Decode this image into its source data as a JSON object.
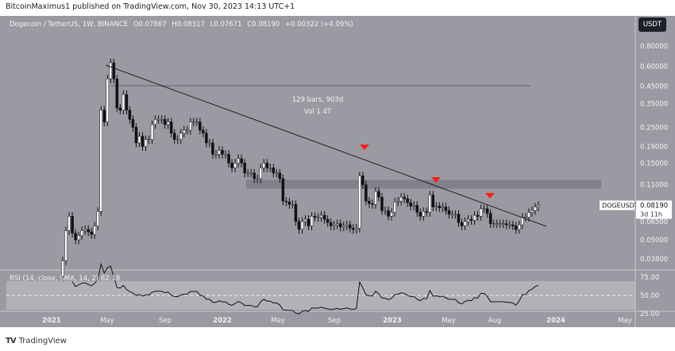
{
  "publisher_line": "BitcoinMaximus1 published on TradingView.com, Nov 30, 2023 14:13 UTC+1",
  "legend": {
    "symbol": "Dogecoin / TetherUS, 1W, BINANCE",
    "o": "O0.07867",
    "h": "H0.08317",
    "l": "L0.07671",
    "c": "C0.08190",
    "change": "+0.00322 (+4.09%)"
  },
  "currency_button": "USDT",
  "price_label": {
    "symbol": "DOGEUSDT",
    "price": "0.08190",
    "countdown": "3d 11h"
  },
  "measure": {
    "bars": "129 bars, 903d",
    "vol": "Vol 1.4T"
  },
  "rsi_label": "RSI (14, close, SMA, 14, 2)  62.18",
  "footer_logo": "TradingView",
  "colors": {
    "background": "#9a9ba2",
    "up": "#ffffff",
    "down": "#111111",
    "marker": "#ff1a1a",
    "trendline": "#222222"
  },
  "chart_data": {
    "type": "candlestick",
    "scale": "log",
    "ylim": [
      0.035,
      0.85
    ],
    "y_ticks": [
      "0.80000",
      "0.60000",
      "0.45000",
      "0.35000",
      "0.25000",
      "0.19000",
      "0.15000",
      "0.11000",
      "0.06500",
      "0.05000",
      "0.03800"
    ],
    "x_ticks": [
      "2021",
      "May",
      "Sep",
      "2022",
      "May",
      "Sep",
      "2023",
      "May",
      "Aug",
      "2024",
      "May"
    ],
    "rsi_ticks": [
      "75.00",
      "50.00",
      "25.00"
    ],
    "weekly_close": [
      0.037,
      0.057,
      0.07,
      0.055,
      0.05,
      0.053,
      0.057,
      0.058,
      0.056,
      0.054,
      0.061,
      0.075,
      0.32,
      0.27,
      0.5,
      0.63,
      0.5,
      0.33,
      0.32,
      0.4,
      0.32,
      0.28,
      0.25,
      0.2,
      0.22,
      0.19,
      0.21,
      0.21,
      0.26,
      0.28,
      0.28,
      0.28,
      0.26,
      0.27,
      0.23,
      0.21,
      0.21,
      0.23,
      0.24,
      0.24,
      0.27,
      0.27,
      0.27,
      0.24,
      0.23,
      0.2,
      0.2,
      0.17,
      0.17,
      0.18,
      0.17,
      0.17,
      0.15,
      0.14,
      0.15,
      0.16,
      0.15,
      0.13,
      0.13,
      0.13,
      0.12,
      0.12,
      0.14,
      0.15,
      0.14,
      0.14,
      0.13,
      0.13,
      0.12,
      0.087,
      0.086,
      0.083,
      0.083,
      0.065,
      0.058,
      0.065,
      0.067,
      0.061,
      0.07,
      0.069,
      0.069,
      0.071,
      0.067,
      0.064,
      0.061,
      0.062,
      0.063,
      0.06,
      0.061,
      0.062,
      0.059,
      0.058,
      0.059,
      0.125,
      0.11,
      0.087,
      0.084,
      0.083,
      0.1,
      0.092,
      0.076,
      0.076,
      0.07,
      0.074,
      0.086,
      0.087,
      0.092,
      0.09,
      0.085,
      0.081,
      0.082,
      0.074,
      0.07,
      0.075,
      0.074,
      0.095,
      0.08,
      0.081,
      0.079,
      0.08,
      0.076,
      0.072,
      0.072,
      0.072,
      0.064,
      0.061,
      0.065,
      0.067,
      0.066,
      0.071,
      0.07,
      0.078,
      0.078,
      0.073,
      0.063,
      0.063,
      0.063,
      0.063,
      0.063,
      0.062,
      0.062,
      0.061,
      0.058,
      0.062,
      0.069,
      0.069,
      0.074,
      0.076,
      0.08,
      0.0819
    ],
    "resistance_zone": 0.11,
    "rejection_markers": 3
  }
}
